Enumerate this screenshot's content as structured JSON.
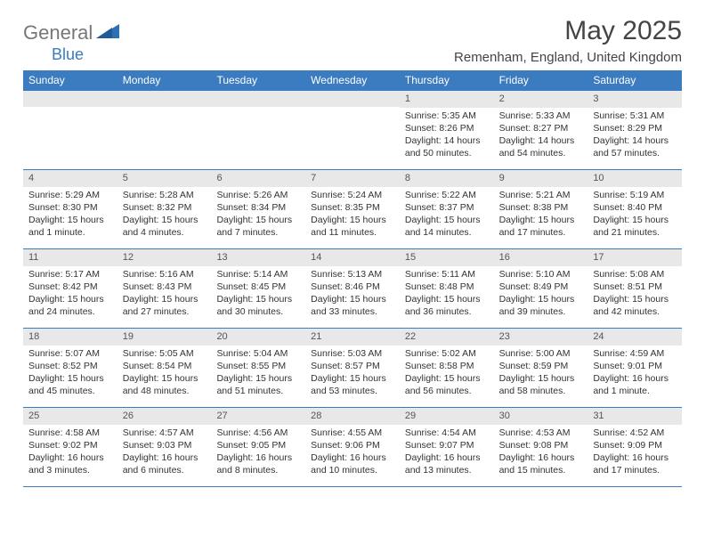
{
  "brand": {
    "part1": "General",
    "part2": "Blue"
  },
  "title": "May 2025",
  "location": "Remenham, England, United Kingdom",
  "colors": {
    "accent": "#3b7bbf",
    "header_text": "#ffffff",
    "daynum_bg": "#e8e8e8",
    "body_text": "#333333",
    "brand_gray": "#777777"
  },
  "day_headers": [
    "Sunday",
    "Monday",
    "Tuesday",
    "Wednesday",
    "Thursday",
    "Friday",
    "Saturday"
  ],
  "weeks": [
    [
      {
        "n": "",
        "sr": "",
        "ss": "",
        "dl": ""
      },
      {
        "n": "",
        "sr": "",
        "ss": "",
        "dl": ""
      },
      {
        "n": "",
        "sr": "",
        "ss": "",
        "dl": ""
      },
      {
        "n": "",
        "sr": "",
        "ss": "",
        "dl": ""
      },
      {
        "n": "1",
        "sr": "Sunrise: 5:35 AM",
        "ss": "Sunset: 8:26 PM",
        "dl": "Daylight: 14 hours and 50 minutes."
      },
      {
        "n": "2",
        "sr": "Sunrise: 5:33 AM",
        "ss": "Sunset: 8:27 PM",
        "dl": "Daylight: 14 hours and 54 minutes."
      },
      {
        "n": "3",
        "sr": "Sunrise: 5:31 AM",
        "ss": "Sunset: 8:29 PM",
        "dl": "Daylight: 14 hours and 57 minutes."
      }
    ],
    [
      {
        "n": "4",
        "sr": "Sunrise: 5:29 AM",
        "ss": "Sunset: 8:30 PM",
        "dl": "Daylight: 15 hours and 1 minute."
      },
      {
        "n": "5",
        "sr": "Sunrise: 5:28 AM",
        "ss": "Sunset: 8:32 PM",
        "dl": "Daylight: 15 hours and 4 minutes."
      },
      {
        "n": "6",
        "sr": "Sunrise: 5:26 AM",
        "ss": "Sunset: 8:34 PM",
        "dl": "Daylight: 15 hours and 7 minutes."
      },
      {
        "n": "7",
        "sr": "Sunrise: 5:24 AM",
        "ss": "Sunset: 8:35 PM",
        "dl": "Daylight: 15 hours and 11 minutes."
      },
      {
        "n": "8",
        "sr": "Sunrise: 5:22 AM",
        "ss": "Sunset: 8:37 PM",
        "dl": "Daylight: 15 hours and 14 minutes."
      },
      {
        "n": "9",
        "sr": "Sunrise: 5:21 AM",
        "ss": "Sunset: 8:38 PM",
        "dl": "Daylight: 15 hours and 17 minutes."
      },
      {
        "n": "10",
        "sr": "Sunrise: 5:19 AM",
        "ss": "Sunset: 8:40 PM",
        "dl": "Daylight: 15 hours and 21 minutes."
      }
    ],
    [
      {
        "n": "11",
        "sr": "Sunrise: 5:17 AM",
        "ss": "Sunset: 8:42 PM",
        "dl": "Daylight: 15 hours and 24 minutes."
      },
      {
        "n": "12",
        "sr": "Sunrise: 5:16 AM",
        "ss": "Sunset: 8:43 PM",
        "dl": "Daylight: 15 hours and 27 minutes."
      },
      {
        "n": "13",
        "sr": "Sunrise: 5:14 AM",
        "ss": "Sunset: 8:45 PM",
        "dl": "Daylight: 15 hours and 30 minutes."
      },
      {
        "n": "14",
        "sr": "Sunrise: 5:13 AM",
        "ss": "Sunset: 8:46 PM",
        "dl": "Daylight: 15 hours and 33 minutes."
      },
      {
        "n": "15",
        "sr": "Sunrise: 5:11 AM",
        "ss": "Sunset: 8:48 PM",
        "dl": "Daylight: 15 hours and 36 minutes."
      },
      {
        "n": "16",
        "sr": "Sunrise: 5:10 AM",
        "ss": "Sunset: 8:49 PM",
        "dl": "Daylight: 15 hours and 39 minutes."
      },
      {
        "n": "17",
        "sr": "Sunrise: 5:08 AM",
        "ss": "Sunset: 8:51 PM",
        "dl": "Daylight: 15 hours and 42 minutes."
      }
    ],
    [
      {
        "n": "18",
        "sr": "Sunrise: 5:07 AM",
        "ss": "Sunset: 8:52 PM",
        "dl": "Daylight: 15 hours and 45 minutes."
      },
      {
        "n": "19",
        "sr": "Sunrise: 5:05 AM",
        "ss": "Sunset: 8:54 PM",
        "dl": "Daylight: 15 hours and 48 minutes."
      },
      {
        "n": "20",
        "sr": "Sunrise: 5:04 AM",
        "ss": "Sunset: 8:55 PM",
        "dl": "Daylight: 15 hours and 51 minutes."
      },
      {
        "n": "21",
        "sr": "Sunrise: 5:03 AM",
        "ss": "Sunset: 8:57 PM",
        "dl": "Daylight: 15 hours and 53 minutes."
      },
      {
        "n": "22",
        "sr": "Sunrise: 5:02 AM",
        "ss": "Sunset: 8:58 PM",
        "dl": "Daylight: 15 hours and 56 minutes."
      },
      {
        "n": "23",
        "sr": "Sunrise: 5:00 AM",
        "ss": "Sunset: 8:59 PM",
        "dl": "Daylight: 15 hours and 58 minutes."
      },
      {
        "n": "24",
        "sr": "Sunrise: 4:59 AM",
        "ss": "Sunset: 9:01 PM",
        "dl": "Daylight: 16 hours and 1 minute."
      }
    ],
    [
      {
        "n": "25",
        "sr": "Sunrise: 4:58 AM",
        "ss": "Sunset: 9:02 PM",
        "dl": "Daylight: 16 hours and 3 minutes."
      },
      {
        "n": "26",
        "sr": "Sunrise: 4:57 AM",
        "ss": "Sunset: 9:03 PM",
        "dl": "Daylight: 16 hours and 6 minutes."
      },
      {
        "n": "27",
        "sr": "Sunrise: 4:56 AM",
        "ss": "Sunset: 9:05 PM",
        "dl": "Daylight: 16 hours and 8 minutes."
      },
      {
        "n": "28",
        "sr": "Sunrise: 4:55 AM",
        "ss": "Sunset: 9:06 PM",
        "dl": "Daylight: 16 hours and 10 minutes."
      },
      {
        "n": "29",
        "sr": "Sunrise: 4:54 AM",
        "ss": "Sunset: 9:07 PM",
        "dl": "Daylight: 16 hours and 13 minutes."
      },
      {
        "n": "30",
        "sr": "Sunrise: 4:53 AM",
        "ss": "Sunset: 9:08 PM",
        "dl": "Daylight: 16 hours and 15 minutes."
      },
      {
        "n": "31",
        "sr": "Sunrise: 4:52 AM",
        "ss": "Sunset: 9:09 PM",
        "dl": "Daylight: 16 hours and 17 minutes."
      }
    ]
  ]
}
